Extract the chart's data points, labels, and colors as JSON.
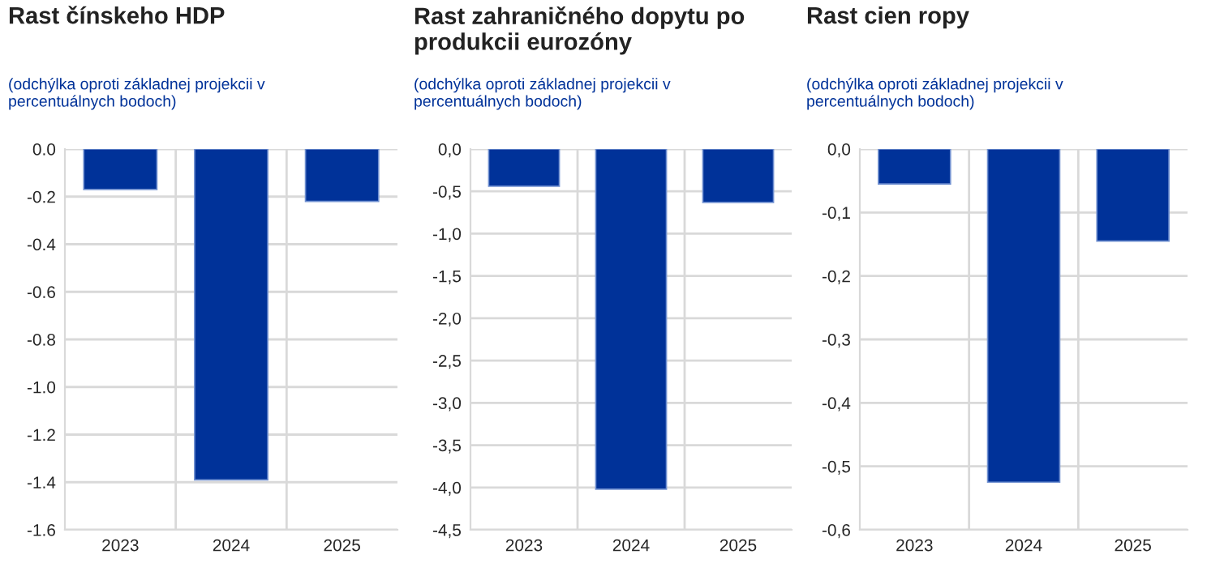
{
  "chart_data": [
    {
      "type": "bar",
      "title": "Rast čínskeho HDP",
      "subtitle": "(odchýlka oproti základnej projekcii v percentuálnych bodoch)",
      "categories": [
        "2023",
        "2024",
        "2025"
      ],
      "values": [
        -0.17,
        -1.39,
        -0.22
      ],
      "color": "#003299",
      "ylim": [
        -1.6,
        0
      ],
      "yticks": [
        {
          "value": 0,
          "label": "0.0"
        },
        {
          "value": -0.2,
          "label": "-0.2"
        },
        {
          "value": -0.4,
          "label": "-0.4"
        },
        {
          "value": -0.6,
          "label": "-0.6"
        },
        {
          "value": -0.8,
          "label": "-0.8"
        },
        {
          "value": -1.0,
          "label": "-1.0"
        },
        {
          "value": -1.2,
          "label": "-1.2"
        },
        {
          "value": -1.4,
          "label": "-1.4"
        },
        {
          "value": -1.6,
          "label": "-1.6"
        }
      ],
      "grid": true
    },
    {
      "type": "bar",
      "title": "Rast zahraničného dopytu po produkcii eurozóny",
      "subtitle": "(odchýlka oproti základnej projekcii v percentuálnych bodoch)",
      "categories": [
        "2023",
        "2024",
        "2025"
      ],
      "values": [
        -0.44,
        -4.02,
        -0.63
      ],
      "color": "#003299",
      "ylim": [
        -4.5,
        0
      ],
      "yticks": [
        {
          "value": 0,
          "label": "0,0"
        },
        {
          "value": -0.5,
          "label": "-0,5"
        },
        {
          "value": -1.0,
          "label": "-1,0"
        },
        {
          "value": -1.5,
          "label": "-1,5"
        },
        {
          "value": -2.0,
          "label": "-2,0"
        },
        {
          "value": -2.5,
          "label": "-2,5"
        },
        {
          "value": -3.0,
          "label": "-3,0"
        },
        {
          "value": -3.5,
          "label": "-3,5"
        },
        {
          "value": -4.0,
          "label": "-4,0"
        },
        {
          "value": -4.5,
          "label": "-4,5"
        }
      ],
      "grid": true
    },
    {
      "type": "bar",
      "title": "Rast cien ropy",
      "subtitle": "(odchýlka oproti základnej projekcii v percentuálnych bodoch)",
      "categories": [
        "2023",
        "2024",
        "2025"
      ],
      "values": [
        -0.055,
        -0.525,
        -0.145
      ],
      "color": "#003299",
      "ylim": [
        -0.6,
        0
      ],
      "yticks": [
        {
          "value": 0,
          "label": "0,0"
        },
        {
          "value": -0.1,
          "label": "-0,1"
        },
        {
          "value": -0.2,
          "label": "-0,2"
        },
        {
          "value": -0.3,
          "label": "-0,3"
        },
        {
          "value": -0.4,
          "label": "-0,4"
        },
        {
          "value": -0.5,
          "label": "-0,5"
        },
        {
          "value": -0.6,
          "label": "-0,6"
        }
      ],
      "grid": true
    }
  ]
}
